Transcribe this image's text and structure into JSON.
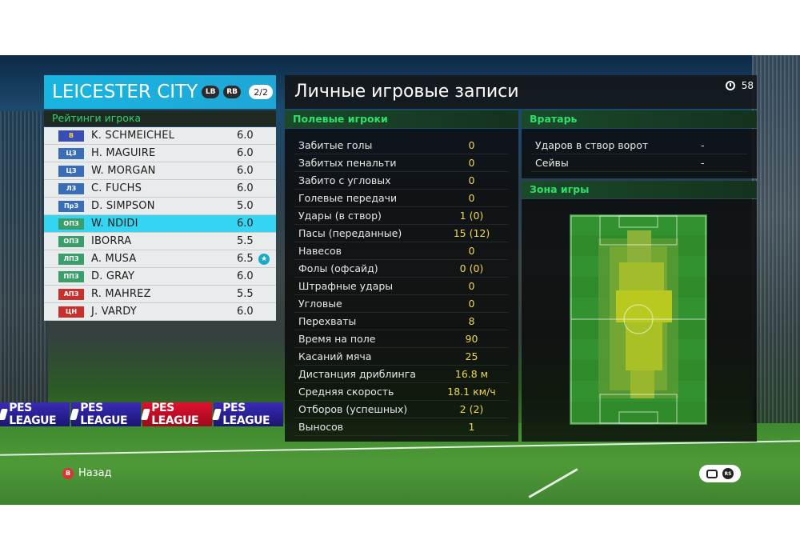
{
  "team": {
    "name": "LEICESTER CITY",
    "lb_label": "LB",
    "rb_label": "RB",
    "page": "2/2"
  },
  "ratings_title": "Рейтинги игрока",
  "players": [
    {
      "pos": "В",
      "name": "K. SCHMEICHEL",
      "rating": "6.0",
      "group": "gk"
    },
    {
      "pos": "ЦЗ",
      "name": "H. MAGUIRE",
      "rating": "6.0",
      "group": "def"
    },
    {
      "pos": "ЦЗ",
      "name": "W. MORGAN",
      "rating": "6.0",
      "group": "def"
    },
    {
      "pos": "ЛЗ",
      "name": "C. FUCHS",
      "rating": "6.0",
      "group": "def"
    },
    {
      "pos": "ПрЗ",
      "name": "D. SIMPSON",
      "rating": "5.0",
      "group": "def"
    },
    {
      "pos": "ОПЗ",
      "name": "W. NDIDI",
      "rating": "6.0",
      "group": "mid",
      "selected": true
    },
    {
      "pos": "ОПЗ",
      "name": "IBORRA",
      "rating": "5.5",
      "group": "mid"
    },
    {
      "pos": "ЛПЗ",
      "name": "A. MUSA",
      "rating": "6.5",
      "group": "mid",
      "star": true
    },
    {
      "pos": "ППЗ",
      "name": "D. GRAY",
      "rating": "6.0",
      "group": "mid"
    },
    {
      "pos": "АПЗ",
      "name": "R. MAHREZ",
      "rating": "5.5",
      "group": "fwd"
    },
    {
      "pos": "ЦН",
      "name": "J. VARDY",
      "rating": "6.0",
      "group": "fwd"
    }
  ],
  "main": {
    "title": "Личные игровые записи",
    "timer": "58"
  },
  "field_players": {
    "title": "Полевые игроки",
    "stats": [
      {
        "label": "Забитые голы",
        "value": "0"
      },
      {
        "label": "Забитых пенальти",
        "value": "0"
      },
      {
        "label": "Забито с угловых",
        "value": "0"
      },
      {
        "label": "Голевые передачи",
        "value": "0"
      },
      {
        "label": "Удары (в створ)",
        "value": "1 (0)"
      },
      {
        "label": "Пасы (переданные)",
        "value": "15 (12)"
      },
      {
        "label": "Навесов",
        "value": "0"
      },
      {
        "label": "Фолы (офсайд)",
        "value": "0 (0)"
      },
      {
        "label": "Штрафные удары",
        "value": "0"
      },
      {
        "label": "Угловые",
        "value": "0"
      },
      {
        "label": "Перехваты",
        "value": "8"
      },
      {
        "label": "Время на поле",
        "value": "90"
      },
      {
        "label": "Касаний мяча",
        "value": "25"
      },
      {
        "label": "Дистанция дриблинга",
        "value": "16.8 м"
      },
      {
        "label": "Средняя скорость",
        "value": "18.1 км/ч"
      },
      {
        "label": "Отборов (успешных)",
        "value": "2 (2)"
      },
      {
        "label": "Выносов",
        "value": "1"
      }
    ]
  },
  "goalkeeper": {
    "title": "Вратарь",
    "stats": [
      {
        "label": "Ударов в створ ворот",
        "value": "-"
      },
      {
        "label": "Сейвы",
        "value": "-"
      }
    ]
  },
  "zone": {
    "title": "Зона игры"
  },
  "ad_boards": [
    "PES LEAGUE",
    "PES LEAGUE",
    "PES LEAGUE",
    "PES LEAGUE"
  ],
  "footer": {
    "back_button": "B",
    "back_label": "Назад",
    "rs_label": "RS"
  },
  "colors": {
    "accent_cyan": "#19b5e0",
    "section_green": "#2ee06a",
    "value_yellow": "#f1d94d",
    "selected_row": "#34d5f2"
  }
}
